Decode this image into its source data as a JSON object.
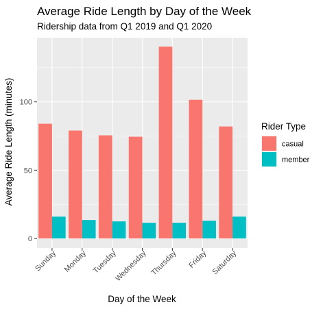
{
  "chart_data": {
    "type": "bar",
    "title": "Average Ride Length by Day of the Week",
    "subtitle": "Ridership data from Q1 2019 and Q1 2020",
    "xlabel": "Day of the Week",
    "ylabel": "Average Ride Length (minutes)",
    "categories": [
      "Sunday",
      "Monday",
      "Tuesday",
      "Wednesday",
      "Thursday",
      "Friday",
      "Saturday"
    ],
    "series": [
      {
        "name": "casual",
        "color": "#F8766D",
        "values": [
          84,
          79,
          75.5,
          74.5,
          140.5,
          101.5,
          82
        ]
      },
      {
        "name": "member",
        "color": "#00BFC4",
        "values": [
          16,
          13.5,
          12.5,
          11.5,
          11.5,
          13,
          16
        ]
      }
    ],
    "yticks": [
      0,
      50,
      100
    ],
    "ylim": [
      -7,
      147
    ],
    "legend": {
      "title": "Rider Type",
      "position": "right"
    },
    "grid": true,
    "background": "#EBEBEB"
  }
}
